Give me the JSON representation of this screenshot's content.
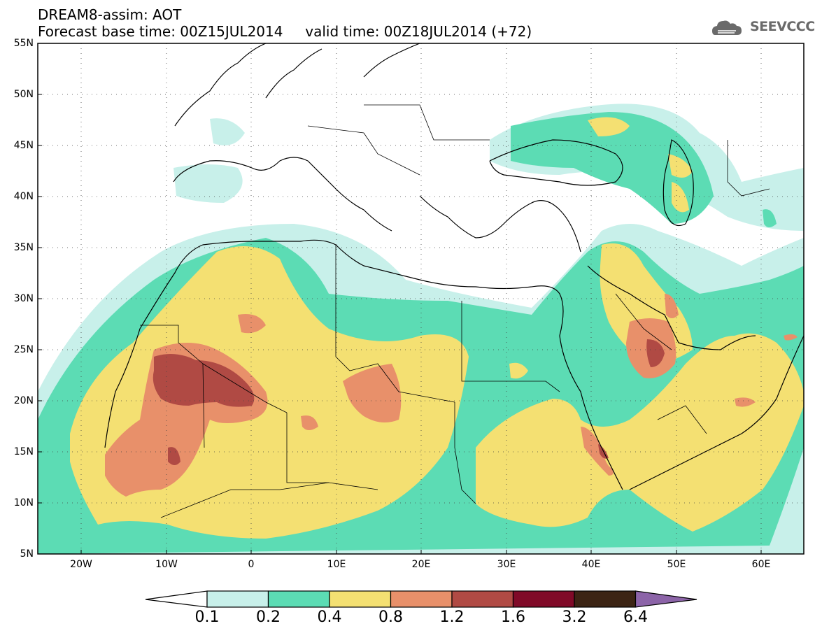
{
  "header": {
    "title": "DREAM8-assim: AOT",
    "subtitle": "Forecast base time: 00Z15JUL2014     valid time: 00Z18JUL2014 (+72)"
  },
  "logo": {
    "text": "SEEVCCC",
    "icon": "cloud-icon",
    "color": "#6a6a6a"
  },
  "map": {
    "lon_range": [
      -25,
      65
    ],
    "lat_range": [
      5,
      55
    ],
    "lat_ticks": [
      "55N",
      "50N",
      "45N",
      "40N",
      "35N",
      "30N",
      "25N",
      "20N",
      "15N",
      "10N",
      "5N"
    ],
    "lon_ticks": [
      "20W",
      "10W",
      "0",
      "10E",
      "20E",
      "30E",
      "40E",
      "50E",
      "60E"
    ]
  },
  "colorbar": {
    "labels": [
      "0.1",
      "0.2",
      "0.4",
      "0.8",
      "1.2",
      "1.6",
      "3.2",
      "6.4"
    ],
    "colors": [
      "#c8f0ea",
      "#5cdcb4",
      "#f4e072",
      "#e8906a",
      "#b04a44",
      "#800a28",
      "#3c2414",
      "#8c64a8"
    ]
  }
}
